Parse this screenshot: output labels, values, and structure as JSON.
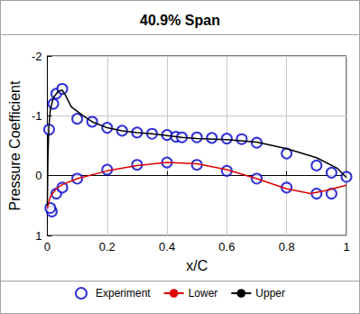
{
  "chart_data": {
    "type": "line",
    "title": "40.9% Span",
    "x_label": "x/C",
    "y_label": "Pressure Coefficient",
    "xlim": [
      0,
      1
    ],
    "xticks": [
      0,
      0.2,
      0.4,
      0.6,
      0.8,
      1
    ],
    "ylim": [
      1,
      -2
    ],
    "yticks": [
      -2,
      -1,
      0,
      1
    ],
    "grid": true,
    "legend": "bottom",
    "series": [
      {
        "name": "Experiment",
        "type": "scatter",
        "marker": "open_circle",
        "color": "#0000cc",
        "x": [
          0.006,
          0.015,
          0.01,
          0.02,
          0.03,
          0.05,
          0.03,
          0.05,
          0.1,
          0.1,
          0.15,
          0.2,
          0.2,
          0.25,
          0.3,
          0.3,
          0.35,
          0.4,
          0.4,
          0.43,
          0.45,
          0.5,
          0.5,
          0.55,
          0.6,
          0.6,
          0.65,
          0.7,
          0.7,
          0.8,
          0.8,
          0.9,
          0.9,
          0.95,
          0.95,
          1.0
        ],
        "values": [
          -0.77,
          0.6,
          0.54,
          -1.2,
          -1.37,
          -1.45,
          0.3,
          0.2,
          0.05,
          -0.95,
          -0.9,
          -0.8,
          -0.1,
          -0.75,
          -0.72,
          -0.18,
          -0.7,
          -0.68,
          -0.22,
          -0.65,
          -0.64,
          -0.64,
          -0.18,
          -0.63,
          -0.62,
          -0.08,
          -0.61,
          -0.55,
          0.05,
          -0.37,
          0.2,
          -0.17,
          0.3,
          0.3,
          -0.05,
          0.02
        ]
      },
      {
        "name": "Lower",
        "type": "line",
        "color": "#dd0000",
        "x": [
          0,
          0.01,
          0.03,
          0.05,
          0.1,
          0.2,
          0.3,
          0.4,
          0.5,
          0.6,
          0.7,
          0.8,
          0.88,
          0.93,
          1
        ],
        "values": [
          0.55,
          0.35,
          0.22,
          0.15,
          0.05,
          -0.08,
          -0.17,
          -0.22,
          -0.2,
          -0.1,
          0.05,
          0.22,
          0.3,
          0.25,
          0.16
        ]
      },
      {
        "name": "Upper",
        "type": "line",
        "color": "#000000",
        "x": [
          0,
          0.002,
          0.005,
          0.01,
          0.02,
          0.035,
          0.05,
          0.06,
          0.08,
          0.12,
          0.15,
          0.2,
          0.25,
          0.3,
          0.35,
          0.4,
          0.45,
          0.5,
          0.6,
          0.7,
          0.8,
          0.9,
          0.97,
          1
        ],
        "values": [
          0.5,
          -0.3,
          -0.8,
          -1.1,
          -1.3,
          -1.4,
          -1.43,
          -1.35,
          -1.15,
          -1.0,
          -0.9,
          -0.8,
          -0.75,
          -0.72,
          -0.7,
          -0.67,
          -0.64,
          -0.62,
          -0.6,
          -0.56,
          -0.45,
          -0.3,
          -0.12,
          0.03
        ]
      }
    ]
  }
}
